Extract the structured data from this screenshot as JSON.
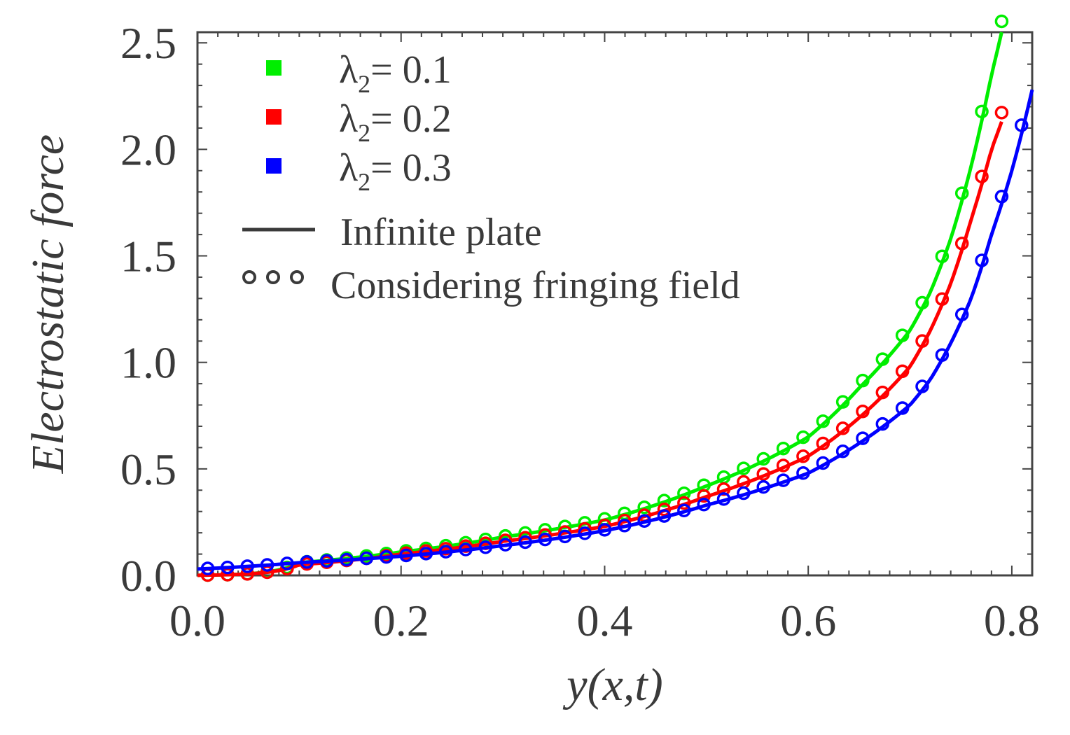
{
  "chart_data": {
    "type": "line",
    "xlabel": "y(x,t)",
    "ylabel": "Electrostatic force",
    "xlim": [
      0.0,
      0.82
    ],
    "ylim": [
      0.0,
      2.55
    ],
    "xticks": [
      "0.0",
      "0.2",
      "0.4",
      "0.6",
      "0.8"
    ],
    "xtick_values": [
      0.0,
      0.2,
      0.4,
      0.6,
      0.8
    ],
    "yticks": [
      "0.0",
      "0.5",
      "1.0",
      "1.5",
      "2.0",
      "2.5"
    ],
    "ytick_values": [
      0.0,
      0.5,
      1.0,
      1.5,
      2.0,
      2.5
    ],
    "grid": false,
    "legend_position": "top-left",
    "series": [
      {
        "name": "λ2= 0.1",
        "legend_symbol": "λ",
        "legend_subscript": "2",
        "legend_value": "= 0.1",
        "color": "#00ee00",
        "x": [
          0.0,
          0.1,
          0.2,
          0.3,
          0.4,
          0.5,
          0.6,
          0.65,
          0.7,
          0.72,
          0.74,
          0.76,
          0.78,
          0.79
        ],
        "y": [
          0.0,
          0.06,
          0.11,
          0.18,
          0.26,
          0.42,
          0.65,
          0.88,
          1.15,
          1.33,
          1.58,
          1.92,
          2.35,
          2.55
        ]
      },
      {
        "name": "λ2= 0.2",
        "legend_symbol": "λ",
        "legend_subscript": "2",
        "legend_value": "= 0.2",
        "color": "#ff0000",
        "x": [
          0.0,
          0.1,
          0.2,
          0.3,
          0.4,
          0.5,
          0.6,
          0.65,
          0.7,
          0.72,
          0.74,
          0.76,
          0.78,
          0.79
        ],
        "y": [
          0.0,
          0.05,
          0.1,
          0.16,
          0.23,
          0.37,
          0.56,
          0.74,
          0.98,
          1.15,
          1.37,
          1.67,
          2.0,
          2.13
        ]
      },
      {
        "name": "λ2= 0.3",
        "legend_symbol": "λ",
        "legend_subscript": "2",
        "legend_value": "= 0.3",
        "color": "#0000ff",
        "x": [
          0.0,
          0.1,
          0.2,
          0.3,
          0.4,
          0.5,
          0.6,
          0.65,
          0.7,
          0.72,
          0.74,
          0.76,
          0.78,
          0.8,
          0.82
        ],
        "y": [
          0.03,
          0.06,
          0.09,
          0.14,
          0.21,
          0.33,
          0.48,
          0.62,
          0.8,
          0.92,
          1.09,
          1.3,
          1.6,
          1.9,
          2.28
        ]
      }
    ],
    "line_style_legend": [
      {
        "style": "solid",
        "label": "Infinite plate"
      },
      {
        "style": "circles",
        "label": "Considering fringing field"
      }
    ]
  }
}
